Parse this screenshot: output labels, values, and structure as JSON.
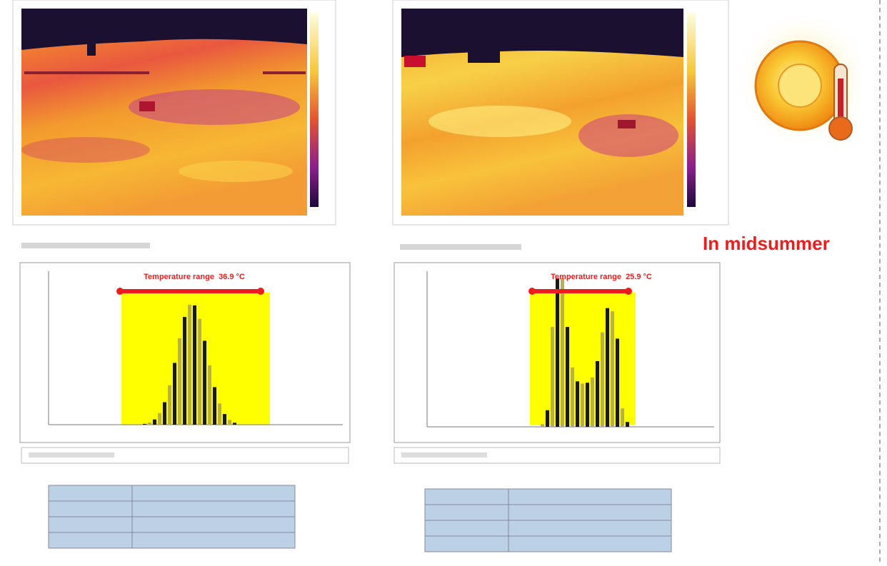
{
  "panels": [
    {
      "range_label": "Temperature range  36.9 °C"
    },
    {
      "range_label": "Temperature range  25.9 °C"
    }
  ],
  "caption": "In midsummer"
}
